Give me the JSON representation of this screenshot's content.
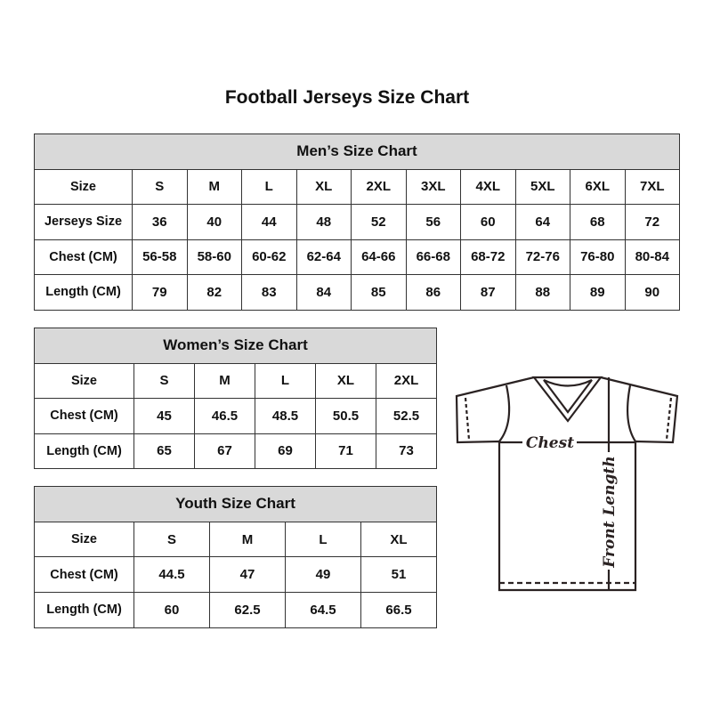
{
  "title": "Football Jerseys Size Chart",
  "men": {
    "heading": "Men’s Size Chart",
    "rows": [
      {
        "label": "Size",
        "cells": [
          "S",
          "M",
          "L",
          "XL",
          "2XL",
          "3XL",
          "4XL",
          "5XL",
          "6XL",
          "7XL"
        ]
      },
      {
        "label": "Jerseys Size",
        "cells": [
          "36",
          "40",
          "44",
          "48",
          "52",
          "56",
          "60",
          "64",
          "68",
          "72"
        ]
      },
      {
        "label": "Chest (CM)",
        "cells": [
          "56-58",
          "58-60",
          "60-62",
          "62-64",
          "64-66",
          "66-68",
          "68-72",
          "72-76",
          "76-80",
          "80-84"
        ]
      },
      {
        "label": "Length (CM)",
        "cells": [
          "79",
          "82",
          "83",
          "84",
          "85",
          "86",
          "87",
          "88",
          "89",
          "90"
        ]
      }
    ]
  },
  "women": {
    "heading": "Women’s Size Chart",
    "rows": [
      {
        "label": "Size",
        "cells": [
          "S",
          "M",
          "L",
          "XL",
          "2XL"
        ]
      },
      {
        "label": "Chest (CM)",
        "cells": [
          "45",
          "46.5",
          "48.5",
          "50.5",
          "52.5"
        ]
      },
      {
        "label": "Length (CM)",
        "cells": [
          "65",
          "67",
          "69",
          "71",
          "73"
        ]
      }
    ]
  },
  "youth": {
    "heading": "Youth Size Chart",
    "rows": [
      {
        "label": "Size",
        "cells": [
          "S",
          "M",
          "L",
          "XL"
        ]
      },
      {
        "label": "Chest (CM)",
        "cells": [
          "44.5",
          "47",
          "49",
          "51"
        ]
      },
      {
        "label": "Length (CM)",
        "cells": [
          "60",
          "62.5",
          "64.5",
          "66.5"
        ]
      }
    ]
  },
  "diagram": {
    "chest_label": "Chest",
    "length_label": "Front Length"
  },
  "colors": {
    "header_bg": "#d9d9d9",
    "line": "#333333"
  }
}
